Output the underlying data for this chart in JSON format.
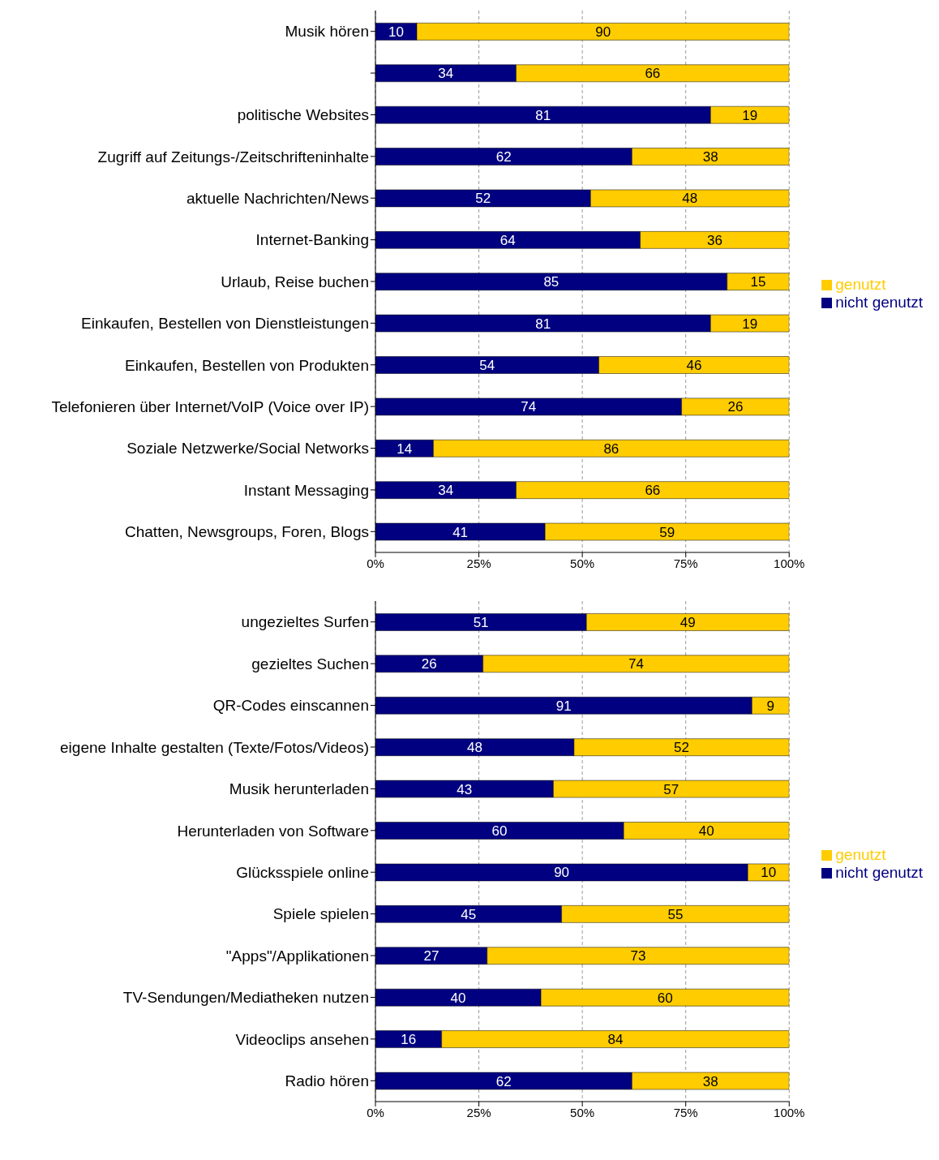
{
  "chart_data": [
    {
      "type": "bar",
      "orientation": "horizontal",
      "stacked": true,
      "categories": [
        "Musik hören",
        null,
        "politische Websites",
        "Zugriff auf Zeitungs-/Zeitschrifteninhalte",
        "aktuelle Nachrichten/News",
        "Internet-Banking",
        "Urlaub, Reise buchen",
        "Einkaufen, Bestellen von Dienstleistungen",
        "Einkaufen, Bestellen von Produkten",
        "Telefonieren über Internet/VoIP (Voice over IP)",
        "Soziale Netzwerke/Social Networks",
        "Instant Messaging",
        "Chatten, Newsgroups, Foren, Blogs"
      ],
      "series": [
        {
          "name": "nicht genutzt",
          "color": "#000080",
          "values": [
            10,
            34,
            81,
            62,
            52,
            64,
            85,
            81,
            54,
            74,
            14,
            34,
            41
          ]
        },
        {
          "name": "genutzt",
          "color": "#ffcc00",
          "values": [
            90,
            66,
            19,
            38,
            48,
            36,
            15,
            19,
            46,
            26,
            86,
            66,
            59
          ]
        }
      ],
      "xlim": [
        0,
        100
      ],
      "xticks": [
        {
          "value": 0,
          "label": "0%"
        },
        {
          "value": 25,
          "label": "25%"
        },
        {
          "value": 50,
          "label": "50%"
        },
        {
          "value": 75,
          "label": "75%"
        },
        {
          "value": 100,
          "label": "100%"
        }
      ],
      "grid": "x",
      "legend": "right",
      "data_labels": true
    },
    {
      "type": "bar",
      "orientation": "horizontal",
      "stacked": true,
      "categories": [
        "ungezieltes Surfen",
        "gezieltes Suchen",
        "QR-Codes einscannen",
        "eigene Inhalte gestalten (Texte/Fotos/Videos)",
        "Musik herunterladen",
        "Herunterladen von Software",
        "Glücksspiele online",
        "Spiele spielen",
        "\"Apps\"/Applikationen",
        "TV-Sendungen/Mediatheken nutzen",
        "Videoclips ansehen",
        "Radio hören"
      ],
      "series": [
        {
          "name": "nicht genutzt",
          "color": "#000080",
          "values": [
            51,
            26,
            91,
            48,
            43,
            60,
            90,
            45,
            27,
            40,
            16,
            62
          ]
        },
        {
          "name": "genutzt",
          "color": "#ffcc00",
          "values": [
            49,
            74,
            9,
            52,
            57,
            40,
            10,
            55,
            73,
            60,
            84,
            38
          ]
        }
      ],
      "xlim": [
        0,
        100
      ],
      "xticks": [
        {
          "value": 0,
          "label": "0%"
        },
        {
          "value": 25,
          "label": "25%"
        },
        {
          "value": 50,
          "label": "50%"
        },
        {
          "value": 75,
          "label": "75%"
        },
        {
          "value": 100,
          "label": "100%"
        }
      ],
      "grid": "x",
      "legend": "right",
      "data_labels": true
    }
  ]
}
